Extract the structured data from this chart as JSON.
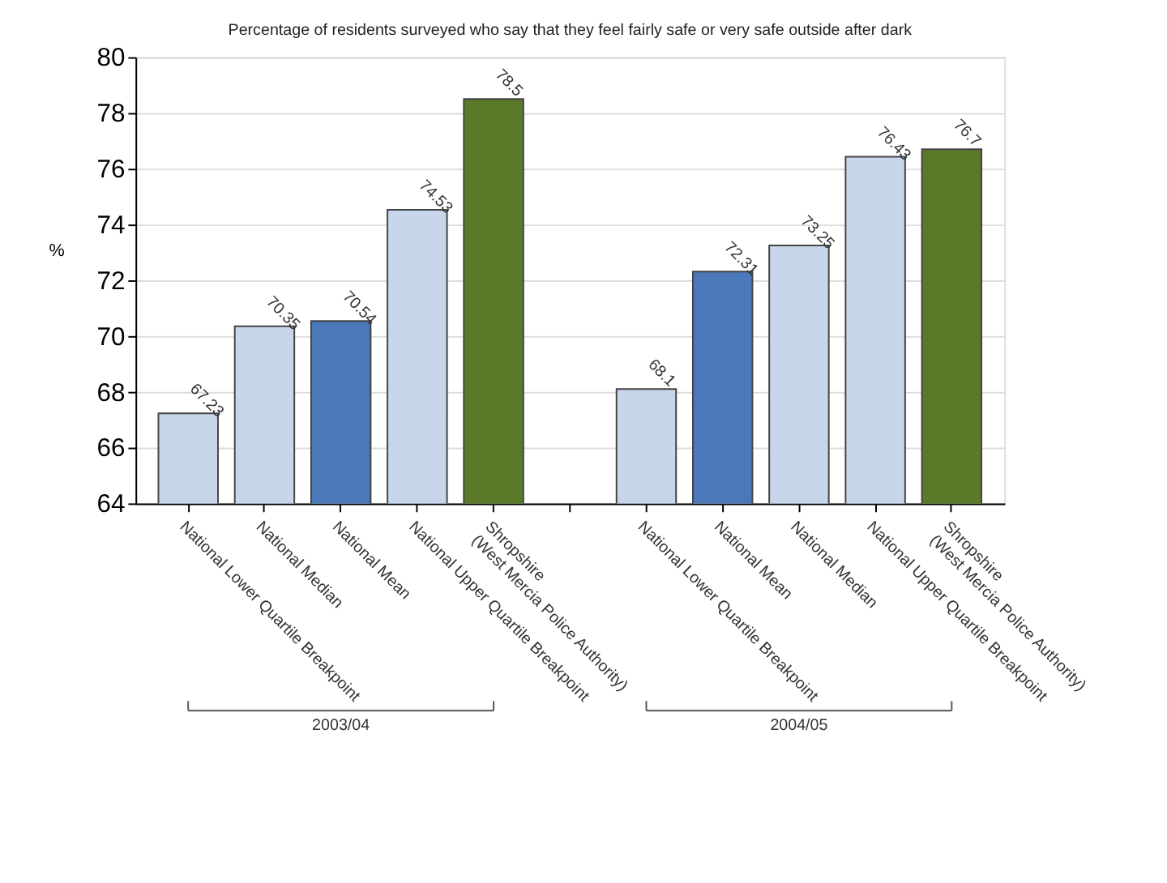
{
  "chart_data": {
    "type": "bar",
    "title": "Percentage of residents surveyed who say that they feel fairly safe or very safe outside after dark",
    "ylabel": "%",
    "categories": [
      "National Lower Quartile Breakpoint",
      "National Median",
      "National Mean",
      "National Upper Quartile Breakpoint",
      "Shropshire\n(West Mercia Police Authority)",
      null,
      "National Lower Quartile Breakpoint",
      "National Mean",
      "National Median",
      "National Upper Quartile Breakpoint",
      "Shropshire\n(West Mercia Police Authority)"
    ],
    "values": [
      67.23,
      70.35,
      70.54,
      74.53,
      78.5,
      null,
      68.1,
      72.31,
      73.25,
      76.43,
      76.7
    ],
    "colors": [
      "#c7d6ea",
      "#c7d6ea",
      "#4a78b8",
      "#c7d6ea",
      "#5a7a2a",
      null,
      "#c7d6ea",
      "#4a78b8",
      "#c7d6ea",
      "#c7d6ea",
      "#5a7a2a"
    ],
    "ylim": [
      64,
      80
    ],
    "yticks": [
      64,
      66,
      68,
      70,
      72,
      74,
      76,
      78,
      80
    ],
    "grid": "y",
    "data_labels": true,
    "annotations": [
      "2003/04",
      "2004/05"
    ]
  }
}
